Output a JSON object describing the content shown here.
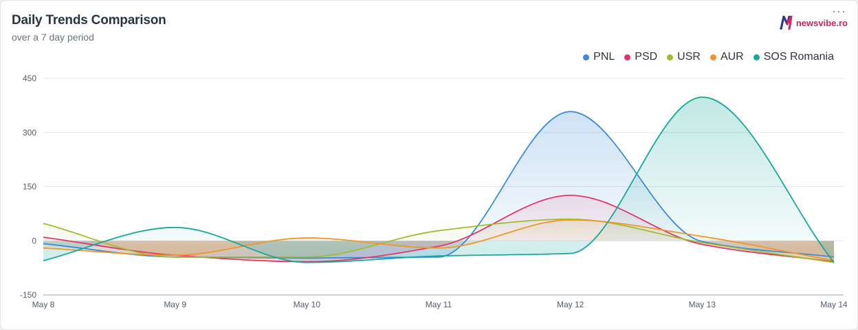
{
  "header": {
    "title": "Daily Trends Comparison",
    "subtitle": "over a 7 day period",
    "more_label": "···"
  },
  "brand": {
    "logo_text": "newsvibe.ro",
    "logo_colors": [
      "#2b3a8f",
      "#e0245e"
    ]
  },
  "chart_data": {
    "type": "area",
    "categories": [
      "May 8",
      "May 9",
      "May 10",
      "May 11",
      "May 12",
      "May 13",
      "May 14"
    ],
    "ylim": [
      -150,
      450
    ],
    "yticks": [
      -150,
      0,
      150,
      300,
      450
    ],
    "grid": true,
    "legend_position": "top-right",
    "series": [
      {
        "name": "PNL",
        "color": "#3b8bd6",
        "values": [
          -8,
          -45,
          -48,
          -45,
          358,
          -2,
          -45
        ]
      },
      {
        "name": "PSD",
        "color": "#e3356b",
        "values": [
          10,
          -40,
          -58,
          -15,
          126,
          -10,
          -58
        ]
      },
      {
        "name": "USR",
        "color": "#9bbf2f",
        "values": [
          48,
          -45,
          -45,
          28,
          60,
          -5,
          -60
        ]
      },
      {
        "name": "AUR",
        "color": "#f1952f",
        "values": [
          -20,
          -40,
          8,
          -20,
          58,
          12,
          -55
        ]
      },
      {
        "name": "SOS Romania",
        "color": "#18a89b",
        "values": [
          -55,
          37,
          -60,
          -42,
          -35,
          398,
          -60
        ]
      }
    ]
  }
}
